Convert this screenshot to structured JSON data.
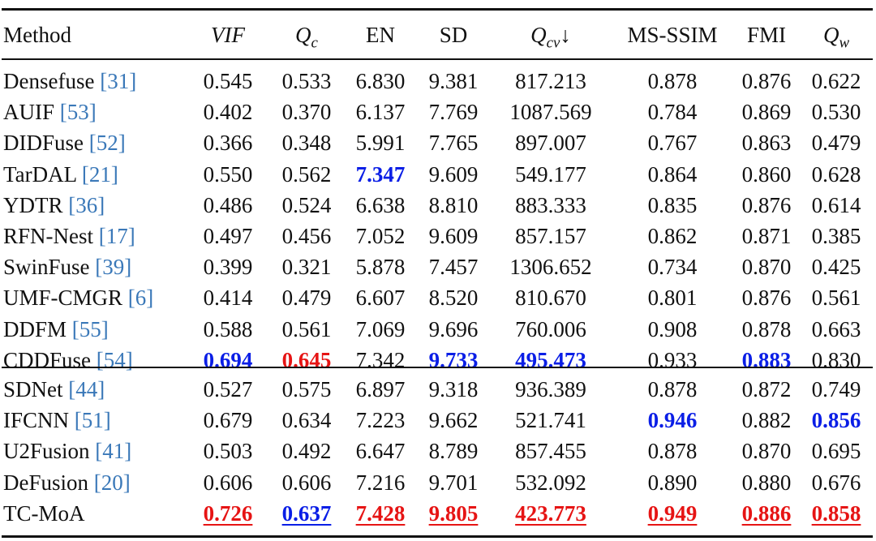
{
  "colors": {
    "best": "#e61414",
    "second": "#0a1ee6",
    "ref": "#3a78b8"
  },
  "headers": [
    {
      "text": "Method",
      "kind": "plain"
    },
    {
      "text": "VIF",
      "kind": "math"
    },
    {
      "text": "Q",
      "sub": "c",
      "kind": "math"
    },
    {
      "text": "EN",
      "kind": "plain"
    },
    {
      "text": "SD",
      "kind": "plain"
    },
    {
      "text": "Q",
      "sub": "cv",
      "suffix": "↓",
      "kind": "math"
    },
    {
      "text": "MS-SSIM",
      "kind": "plain"
    },
    {
      "text": "FMI",
      "kind": "plain"
    },
    {
      "text": "Q",
      "sub": "w",
      "kind": "math"
    }
  ],
  "groups": [
    {
      "rows": [
        {
          "method": "Densefuse ",
          "ref": "[31]",
          "values": [
            "0.545",
            "0.533",
            "6.830",
            "9.381",
            "817.213",
            "0.878",
            "0.876",
            "0.622"
          ],
          "styles": [
            "",
            "",
            "",
            "",
            "",
            "",
            "",
            ""
          ]
        },
        {
          "method": "AUIF ",
          "ref": "[53]",
          "values": [
            "0.402",
            "0.370",
            "6.137",
            "7.769",
            "1087.569",
            "0.784",
            "0.869",
            "0.530"
          ],
          "styles": [
            "",
            "",
            "",
            "",
            "",
            "",
            "",
            ""
          ]
        },
        {
          "method": "DIDFuse ",
          "ref": "[52]",
          "values": [
            "0.366",
            "0.348",
            "5.991",
            "7.765",
            "897.007",
            "0.767",
            "0.863",
            "0.479"
          ],
          "styles": [
            "",
            "",
            "",
            "",
            "",
            "",
            "",
            ""
          ]
        },
        {
          "method": "TarDAL ",
          "ref": "[21]",
          "values": [
            "0.550",
            "0.562",
            "7.347",
            "9.609",
            "549.177",
            "0.864",
            "0.860",
            "0.628"
          ],
          "styles": [
            "",
            "",
            "blue",
            "",
            "",
            "",
            "",
            ""
          ]
        },
        {
          "method": "YDTR ",
          "ref": "[36]",
          "values": [
            "0.486",
            "0.524",
            "6.638",
            "8.810",
            "883.333",
            "0.835",
            "0.876",
            "0.614"
          ],
          "styles": [
            "",
            "",
            "",
            "",
            "",
            "",
            "",
            ""
          ]
        },
        {
          "method": "RFN-Nest ",
          "ref": "[17]",
          "values": [
            "0.497",
            "0.456",
            "7.052",
            "9.609",
            "857.157",
            "0.862",
            "0.871",
            "0.385"
          ],
          "styles": [
            "",
            "",
            "",
            "",
            "",
            "",
            "",
            ""
          ]
        },
        {
          "method": "SwinFuse ",
          "ref": "[39]",
          "values": [
            "0.399",
            "0.321",
            "5.878",
            "7.457",
            "1306.652",
            "0.734",
            "0.870",
            "0.425"
          ],
          "styles": [
            "",
            "",
            "",
            "",
            "",
            "",
            "",
            ""
          ]
        },
        {
          "method": "UMF-CMGR ",
          "ref": "[6]",
          "values": [
            "0.414",
            "0.479",
            "6.607",
            "8.520",
            "810.670",
            "0.801",
            "0.876",
            "0.561"
          ],
          "styles": [
            "",
            "",
            "",
            "",
            "",
            "",
            "",
            ""
          ]
        },
        {
          "method": "DDFM ",
          "ref": "[55]",
          "values": [
            "0.588",
            "0.561",
            "7.069",
            "9.696",
            "760.006",
            "0.908",
            "0.878",
            "0.663"
          ],
          "styles": [
            "",
            "",
            "",
            "",
            "",
            "",
            "",
            ""
          ]
        },
        {
          "method": "CDDFuse ",
          "ref": "[54]",
          "values": [
            "0.694",
            "0.645",
            "7.342",
            "9.733",
            "495.473",
            "0.933",
            "0.883",
            "0.830"
          ],
          "styles": [
            "blue",
            "red",
            "",
            "blue",
            "blue",
            "",
            "blue",
            ""
          ]
        }
      ]
    },
    {
      "rows": [
        {
          "method": "SDNet ",
          "ref": "[44]",
          "values": [
            "0.527",
            "0.575",
            "6.897",
            "9.318",
            "936.389",
            "0.878",
            "0.872",
            "0.749"
          ],
          "styles": [
            "",
            "",
            "",
            "",
            "",
            "",
            "",
            ""
          ]
        },
        {
          "method": "IFCNN ",
          "ref": "[51]",
          "values": [
            "0.679",
            "0.634",
            "7.223",
            "9.662",
            "521.741",
            "0.946",
            "0.882",
            "0.856"
          ],
          "styles": [
            "",
            "",
            "",
            "",
            "",
            "blue",
            "",
            "blue"
          ]
        },
        {
          "method": "U2Fusion ",
          "ref": "[41]",
          "values": [
            "0.503",
            "0.492",
            "6.647",
            "8.789",
            "857.455",
            "0.878",
            "0.870",
            "0.695"
          ],
          "styles": [
            "",
            "",
            "",
            "",
            "",
            "",
            "",
            ""
          ]
        },
        {
          "method": "DeFusion ",
          "ref": "[20]",
          "values": [
            "0.606",
            "0.606",
            "7.216",
            "9.701",
            "532.092",
            "0.890",
            "0.880",
            "0.676"
          ],
          "styles": [
            "",
            "",
            "",
            "",
            "",
            "",
            "",
            ""
          ]
        },
        {
          "method": "TC-MoA",
          "ref": "",
          "values": [
            "0.726",
            "0.637",
            "7.428",
            "9.805",
            "423.773",
            "0.949",
            "0.886",
            "0.858"
          ],
          "styles": [
            "red-u",
            "blue-u",
            "red-u",
            "red-u",
            "red-u",
            "red-u",
            "red-u",
            "red-u"
          ]
        }
      ]
    }
  ]
}
